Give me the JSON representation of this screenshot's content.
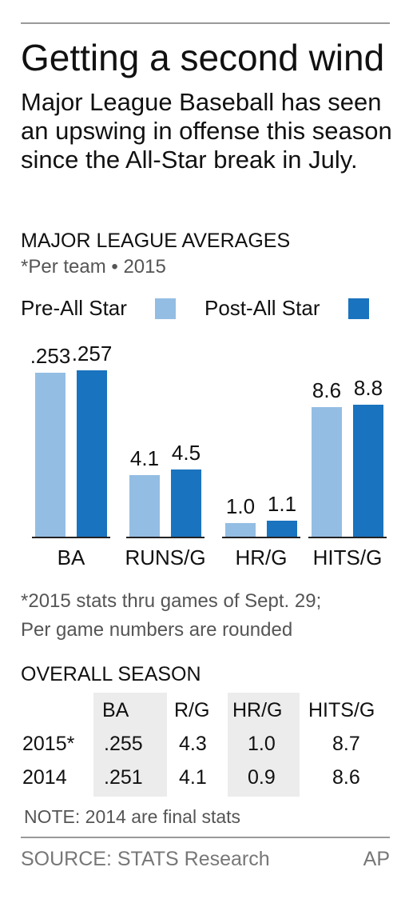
{
  "header": {
    "title": "Getting a second wind",
    "intro": "Major League Baseball has seen an upswing in offense this season since the All-Star break in July."
  },
  "chart_section": {
    "heading": "MAJOR LEAGUE AVERAGES",
    "subheading": "*Per team • 2015"
  },
  "colors": {
    "pre": "#94bde3",
    "post": "#1a73be",
    "axis": "#222222",
    "table_shade": "#ececec"
  },
  "chart_data": {
    "type": "bar",
    "title": "MAJOR LEAGUE AVERAGES",
    "subtitle": "*Per team • 2015",
    "categories": [
      "BA",
      "RUNS/G",
      "HR/G",
      "HITS/G"
    ],
    "series": [
      {
        "name": "Pre-All Star",
        "values": [
          0.253,
          4.1,
          1.0,
          8.6
        ],
        "labels": [
          ".253",
          "4.1",
          "1.0",
          "8.6"
        ]
      },
      {
        "name": "Post-All Star",
        "values": [
          0.257,
          4.5,
          1.1,
          8.8
        ],
        "labels": [
          ".257",
          "4.5",
          "1.1",
          "8.8"
        ]
      }
    ],
    "scale_note": "each stat shown on its own scale",
    "legend": "top-left",
    "grid": false
  },
  "footnote": {
    "line1": "*2015 stats thru games of Sept. 29;",
    "line2": "Per game numbers are rounded"
  },
  "season_table": {
    "heading": "OVERALL SEASON",
    "columns": [
      "BA",
      "R/G",
      "HR/G",
      "HITS/G"
    ],
    "rows": [
      {
        "label": "2015*",
        "values": [
          ".255",
          "4.3",
          "1.0",
          "8.7"
        ]
      },
      {
        "label": "2014",
        "values": [
          ".251",
          "4.1",
          "0.9",
          "8.6"
        ]
      }
    ],
    "note": "NOTE: 2014 are final stats"
  },
  "footer": {
    "source": "SOURCE: STATS Research",
    "credit": "AP"
  }
}
